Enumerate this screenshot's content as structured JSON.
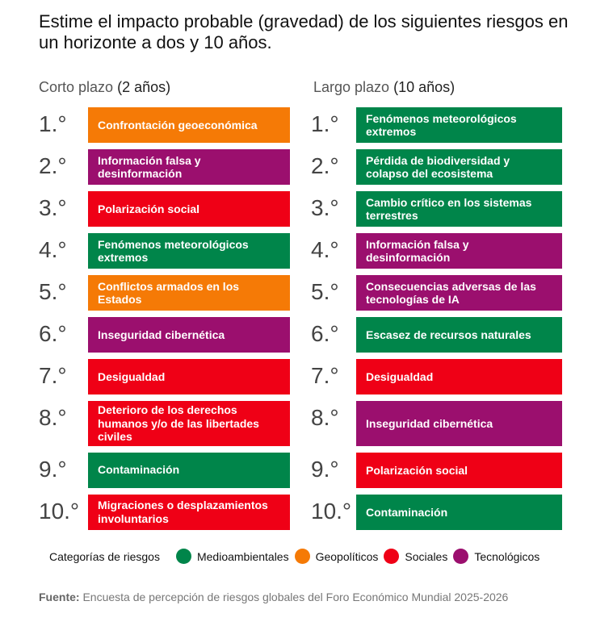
{
  "title": "Estime el impacto probable (gravedad) de los siguientes riesgos en un horizonte a dos y 10 años.",
  "colors": {
    "Medioambientales": "#00854a",
    "Geopolíticos": "#f57a06",
    "Sociales": "#ef0016",
    "Tecnológicos": "#9b0f6e"
  },
  "short_term": {
    "label": "Corto plazo",
    "years": "(2 años)",
    "items": [
      {
        "rank": "1.°",
        "risk": "Confrontación geoeconómica",
        "category": "Geopolíticos"
      },
      {
        "rank": "2.°",
        "risk": "Información falsa y desinformación",
        "category": "Tecnológicos"
      },
      {
        "rank": "3.°",
        "risk": "Polarización social",
        "category": "Sociales"
      },
      {
        "rank": "4.°",
        "risk": "Fenómenos meteorológicos extremos",
        "category": "Medioambientales"
      },
      {
        "rank": "5.°",
        "risk": "Conflictos armados en los Estados",
        "category": "Geopolíticos"
      },
      {
        "rank": "6.°",
        "risk": "Inseguridad cibernética",
        "category": "Tecnológicos"
      },
      {
        "rank": "7.°",
        "risk": "Desigualdad",
        "category": "Sociales"
      },
      {
        "rank": "8.°",
        "risk": "Deterioro de los derechos humanos y/o de las libertades civiles",
        "category": "Sociales"
      },
      {
        "rank": "9.°",
        "risk": "Contaminación",
        "category": "Medioambientales"
      },
      {
        "rank": "10.°",
        "risk": "Migraciones o desplazamientos involuntarios",
        "category": "Sociales"
      }
    ]
  },
  "long_term": {
    "label": "Largo plazo",
    "years": "(10 años)",
    "items": [
      {
        "rank": "1.°",
        "risk": "Fenómenos meteorológicos extremos",
        "category": "Medioambientales"
      },
      {
        "rank": "2.°",
        "risk": "Pérdida de biodiversidad y colapso del ecosistema",
        "category": "Medioambientales"
      },
      {
        "rank": "3.°",
        "risk": "Cambio crítico en los sistemas terrestres",
        "category": "Medioambientales"
      },
      {
        "rank": "4.°",
        "risk": "Información falsa y desinformación",
        "category": "Tecnológicos"
      },
      {
        "rank": "5.°",
        "risk": "Consecuencias adversas de las tecnologías de IA",
        "category": "Tecnológicos"
      },
      {
        "rank": "6.°",
        "risk": "Escasez de recursos naturales",
        "category": "Medioambientales"
      },
      {
        "rank": "7.°",
        "risk": "Desigualdad",
        "category": "Sociales"
      },
      {
        "rank": "8.°",
        "risk": "Inseguridad cibernética",
        "category": "Tecnológicos"
      },
      {
        "rank": "9.°",
        "risk": "Polarización social",
        "category": "Sociales"
      },
      {
        "rank": "10.°",
        "risk": "Contaminación",
        "category": "Medioambientales"
      }
    ]
  },
  "legend": {
    "title": "Categorías de riesgos",
    "items": [
      "Medioambientales",
      "Geopolíticos",
      "Sociales",
      "Tecnológicos"
    ]
  },
  "footer": {
    "label": "Fuente:",
    "text": " Encuesta de percepción de riesgos globales del Foro Económico Mundial 2025-2026"
  }
}
